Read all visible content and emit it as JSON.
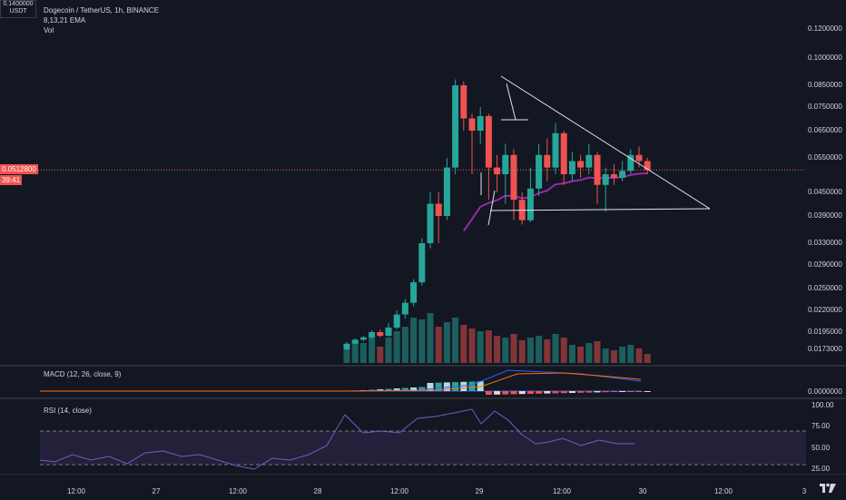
{
  "header": {
    "symbol_title": "Dogecoin / TetherUS, 1h, BINANCE",
    "ema_label": "8,13,21 EMA",
    "vol_label": "Vol",
    "currency_top_value": "0.1400000",
    "currency_unit": "USDT"
  },
  "price_axis": {
    "ticks": [
      "0.1200000",
      "0.1000000",
      "0.0850000",
      "0.0750000",
      "0.0650000",
      "0.0550000",
      "0.0450000",
      "0.0390000",
      "0.0330000",
      "0.0290000",
      "0.0250000",
      "0.0220000",
      "0.0195000",
      "0.0173000"
    ],
    "last_price": "0.0512800",
    "countdown": "39:41"
  },
  "macd": {
    "label": "MACD (12, 26, close, 9)",
    "axis_value": "0.0000000"
  },
  "rsi": {
    "label": "RSI (14, close)",
    "ticks": [
      "100.00",
      "75.00",
      "50.00",
      "25.00"
    ]
  },
  "time_axis": {
    "labels": [
      "12:00",
      "27",
      "12:00",
      "28",
      "12:00",
      "29",
      "12:00",
      "30",
      "12:00",
      "3"
    ]
  },
  "colors": {
    "up": "#26a69a",
    "down": "#ef5350",
    "ema": "#9c27b0",
    "rsi_band": "#7e57c2",
    "last_price": "#ef5350",
    "background": "#131722"
  },
  "icons": {
    "logo": "tradingview-logo-icon"
  },
  "chart_data": {
    "type": "candlestick",
    "candles": [
      {
        "o": 0.0173,
        "c": 0.018,
        "h": 0.0182,
        "l": 0.0172,
        "v": 20
      },
      {
        "o": 0.018,
        "c": 0.0185,
        "h": 0.0187,
        "l": 0.0179,
        "v": 25
      },
      {
        "o": 0.0185,
        "c": 0.0188,
        "h": 0.019,
        "l": 0.0183,
        "v": 22
      },
      {
        "o": 0.0188,
        "c": 0.0195,
        "h": 0.0197,
        "l": 0.0186,
        "v": 30
      },
      {
        "o": 0.0195,
        "c": 0.019,
        "h": 0.0198,
        "l": 0.0188,
        "v": 18
      },
      {
        "o": 0.019,
        "c": 0.02,
        "h": 0.0205,
        "l": 0.0189,
        "v": 28
      },
      {
        "o": 0.02,
        "c": 0.0215,
        "h": 0.022,
        "l": 0.0198,
        "v": 35
      },
      {
        "o": 0.0215,
        "c": 0.023,
        "h": 0.0235,
        "l": 0.021,
        "v": 40
      },
      {
        "o": 0.023,
        "c": 0.026,
        "h": 0.0265,
        "l": 0.0225,
        "v": 50
      },
      {
        "o": 0.026,
        "c": 0.033,
        "h": 0.034,
        "l": 0.0255,
        "v": 48
      },
      {
        "o": 0.033,
        "c": 0.042,
        "h": 0.045,
        "l": 0.032,
        "v": 55
      },
      {
        "o": 0.042,
        "c": 0.039,
        "h": 0.045,
        "l": 0.033,
        "v": 40
      },
      {
        "o": 0.039,
        "c": 0.052,
        "h": 0.055,
        "l": 0.038,
        "v": 45
      },
      {
        "o": 0.052,
        "c": 0.085,
        "h": 0.088,
        "l": 0.05,
        "v": 50
      },
      {
        "o": 0.085,
        "c": 0.07,
        "h": 0.087,
        "l": 0.065,
        "v": 42
      },
      {
        "o": 0.07,
        "c": 0.065,
        "h": 0.072,
        "l": 0.05,
        "v": 38
      },
      {
        "o": 0.065,
        "c": 0.071,
        "h": 0.075,
        "l": 0.06,
        "v": 35
      },
      {
        "o": 0.071,
        "c": 0.052,
        "h": 0.072,
        "l": 0.043,
        "v": 36
      },
      {
        "o": 0.052,
        "c": 0.05,
        "h": 0.056,
        "l": 0.045,
        "v": 30
      },
      {
        "o": 0.05,
        "c": 0.056,
        "h": 0.06,
        "l": 0.042,
        "v": 28
      },
      {
        "o": 0.056,
        "c": 0.043,
        "h": 0.058,
        "l": 0.038,
        "v": 32
      },
      {
        "o": 0.043,
        "c": 0.038,
        "h": 0.045,
        "l": 0.037,
        "v": 25
      },
      {
        "o": 0.038,
        "c": 0.046,
        "h": 0.052,
        "l": 0.0375,
        "v": 28
      },
      {
        "o": 0.046,
        "c": 0.056,
        "h": 0.06,
        "l": 0.044,
        "v": 30
      },
      {
        "o": 0.056,
        "c": 0.052,
        "h": 0.062,
        "l": 0.048,
        "v": 26
      },
      {
        "o": 0.052,
        "c": 0.064,
        "h": 0.068,
        "l": 0.05,
        "v": 32
      },
      {
        "o": 0.064,
        "c": 0.05,
        "h": 0.065,
        "l": 0.047,
        "v": 28
      },
      {
        "o": 0.05,
        "c": 0.054,
        "h": 0.057,
        "l": 0.048,
        "v": 20
      },
      {
        "o": 0.054,
        "c": 0.052,
        "h": 0.056,
        "l": 0.049,
        "v": 18
      },
      {
        "o": 0.052,
        "c": 0.056,
        "h": 0.06,
        "l": 0.05,
        "v": 22
      },
      {
        "o": 0.056,
        "c": 0.047,
        "h": 0.057,
        "l": 0.042,
        "v": 24
      },
      {
        "o": 0.047,
        "c": 0.05,
        "h": 0.052,
        "l": 0.04,
        "v": 16
      },
      {
        "o": 0.05,
        "c": 0.049,
        "h": 0.053,
        "l": 0.047,
        "v": 14
      },
      {
        "o": 0.049,
        "c": 0.051,
        "h": 0.054,
        "l": 0.048,
        "v": 18
      },
      {
        "o": 0.051,
        "c": 0.056,
        "h": 0.058,
        "l": 0.05,
        "v": 20
      },
      {
        "o": 0.056,
        "c": 0.054,
        "h": 0.059,
        "l": 0.052,
        "v": 16
      },
      {
        "o": 0.054,
        "c": 0.0512,
        "h": 0.055,
        "l": 0.05,
        "v": 10
      }
    ]
  }
}
